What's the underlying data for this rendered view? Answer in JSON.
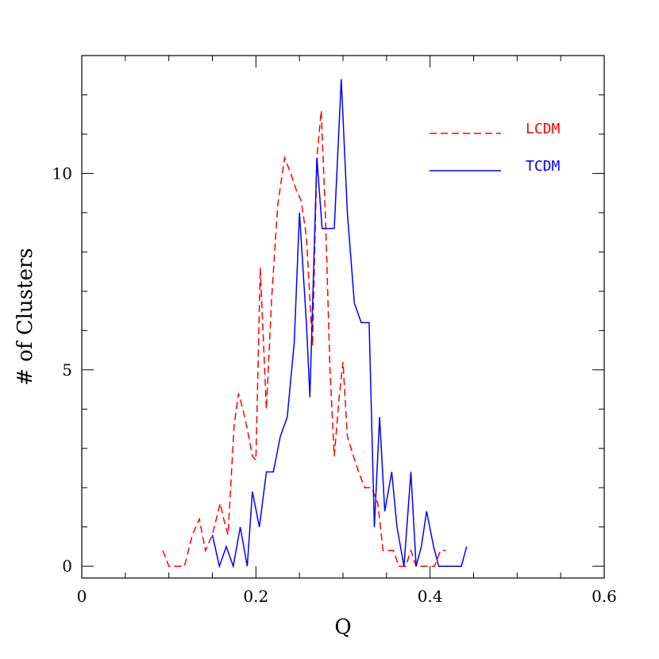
{
  "chart_data": {
    "type": "line",
    "xlabel": "Q",
    "ylabel": "# of Clusters",
    "xlim": [
      0,
      0.6
    ],
    "ylim": [
      -0.3,
      13
    ],
    "x_ticks": [
      0,
      0.2,
      0.4,
      0.6
    ],
    "x_tick_labels": [
      "0",
      "0.2",
      "0.4",
      "0.6"
    ],
    "y_ticks": [
      0,
      5,
      10
    ],
    "y_tick_labels": [
      "0",
      "5",
      "10"
    ],
    "x_minor_step": 0.05,
    "y_minor_step": 1,
    "legend_position": "top-right",
    "series": [
      {
        "name": "LCDM",
        "color": "#ff0000",
        "dash": "dashed",
        "x": [
          0.093,
          0.1,
          0.118,
          0.127,
          0.135,
          0.142,
          0.15,
          0.159,
          0.163,
          0.168,
          0.175,
          0.18,
          0.185,
          0.19,
          0.196,
          0.2,
          0.205,
          0.212,
          0.218,
          0.225,
          0.233,
          0.24,
          0.246,
          0.252,
          0.258,
          0.265,
          0.27,
          0.275,
          0.28,
          0.285,
          0.29,
          0.296,
          0.3,
          0.305,
          0.312,
          0.318,
          0.325,
          0.333,
          0.34,
          0.346,
          0.352,
          0.358,
          0.364,
          0.372,
          0.378,
          0.384,
          0.39,
          0.395,
          0.405,
          0.412,
          0.418
        ],
        "values": [
          0.4,
          0.0,
          0.0,
          0.8,
          1.2,
          0.4,
          0.8,
          1.6,
          1.2,
          0.8,
          3.6,
          4.4,
          4.0,
          3.5,
          2.8,
          2.7,
          7.6,
          4.0,
          6.8,
          9.2,
          10.4,
          10.0,
          9.6,
          9.3,
          8.4,
          5.6,
          10.4,
          11.6,
          8.8,
          5.0,
          2.8,
          4.4,
          5.2,
          3.3,
          2.8,
          2.4,
          2.0,
          2.0,
          1.6,
          0.4,
          0.4,
          0.4,
          0.0,
          0.0,
          0.4,
          0.0,
          0.0,
          0.0,
          0.0,
          0.4,
          0.4
        ]
      },
      {
        "name": "TCDM",
        "color": "#0000ff",
        "dash": "solid",
        "x": [
          0.15,
          0.158,
          0.166,
          0.174,
          0.182,
          0.19,
          0.196,
          0.204,
          0.212,
          0.22,
          0.228,
          0.236,
          0.244,
          0.25,
          0.258,
          0.262,
          0.27,
          0.276,
          0.282,
          0.29,
          0.298,
          0.305,
          0.313,
          0.321,
          0.33,
          0.336,
          0.342,
          0.348,
          0.356,
          0.362,
          0.37,
          0.378,
          0.384,
          0.39,
          0.396,
          0.404,
          0.41,
          0.418,
          0.428,
          0.436,
          0.442
        ],
        "values": [
          0.8,
          0.0,
          0.5,
          0.0,
          1.0,
          0.0,
          1.9,
          1.0,
          2.4,
          2.4,
          3.3,
          3.8,
          5.7,
          9.0,
          6.2,
          4.3,
          10.4,
          8.6,
          8.6,
          8.6,
          12.4,
          9.0,
          6.7,
          6.2,
          6.2,
          1.0,
          3.8,
          1.4,
          2.4,
          1.0,
          0.0,
          2.4,
          0.0,
          0.5,
          1.4,
          0.5,
          0.0,
          0.0,
          0.0,
          0.0,
          0.5
        ]
      }
    ]
  }
}
